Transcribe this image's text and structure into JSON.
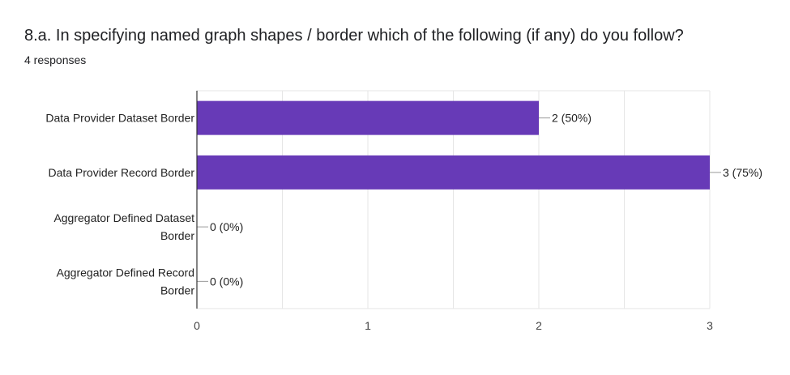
{
  "header": {
    "title": "8.a. In specifying named graph shapes / border which of the following (if any) do you follow?",
    "responses": "4 responses"
  },
  "colors": {
    "bar": "#673ab7",
    "grid": "#e6e6e6",
    "axis": "#333333"
  },
  "chart_data": {
    "type": "bar",
    "orientation": "horizontal",
    "categories": [
      [
        "Data Provider Dataset Border"
      ],
      [
        "Data Provider Record Border"
      ],
      [
        "Aggregator Defined Dataset",
        "Border"
      ],
      [
        "Aggregator Defined Record",
        "Border"
      ]
    ],
    "values": [
      2,
      3,
      0,
      0
    ],
    "value_labels": [
      "2 (50%)",
      "3 (75%)",
      "0 (0%)",
      "0 (0%)"
    ],
    "xticks": [
      "0",
      "1",
      "2",
      "3"
    ],
    "xlim": [
      0,
      3
    ],
    "grid": true
  }
}
